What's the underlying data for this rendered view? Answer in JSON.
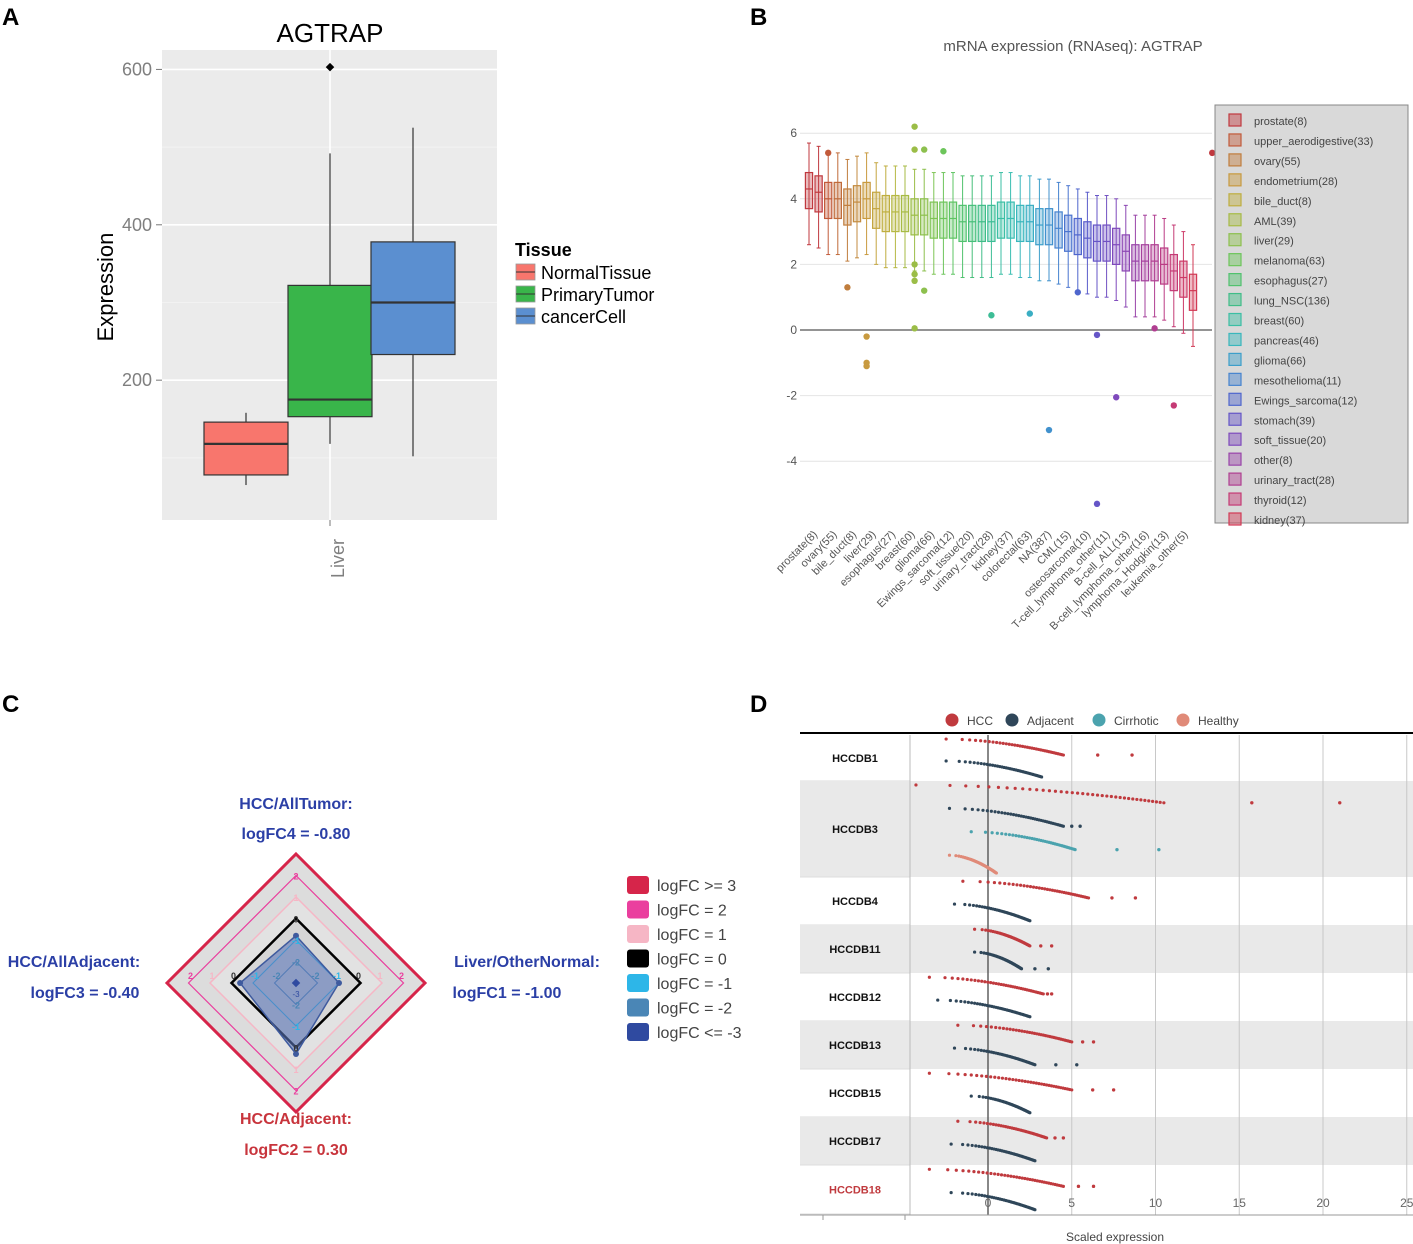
{
  "panel_labels": [
    "A",
    "B",
    "C",
    "D"
  ],
  "chart_data": [
    {
      "panel": "A",
      "type": "box",
      "title": "AGTRAP",
      "xlabel": "",
      "ylabel": "Expression",
      "categories": [
        "Liver"
      ],
      "ylim": [
        20,
        625
      ],
      "yticks": [
        "200",
        "400",
        "600"
      ],
      "ytick_values": [
        200,
        400,
        600
      ],
      "legend_title": "Tissue",
      "series": [
        {
          "name": "NormalTissue",
          "color": "#f8766d",
          "whisker_low": 65,
          "q1": 78,
          "median": 118,
          "q3": 146,
          "whisker_high": 158,
          "outliers": []
        },
        {
          "name": "PrimaryTumor",
          "color": "#39b54a",
          "whisker_low": 118,
          "q1": 153,
          "median": 175,
          "q3": 322,
          "whisker_high": 492,
          "outliers": [
            603
          ]
        },
        {
          "name": "cancerCell",
          "color": "#5b8fd0",
          "whisker_low": 102,
          "q1": 233,
          "median": 300,
          "q3": 378,
          "whisker_high": 525,
          "outliers": []
        }
      ]
    },
    {
      "panel": "B",
      "type": "box",
      "title": "mRNA expression (RNAseq): AGTRAP",
      "ylim": [
        -5.5,
        6.5
      ],
      "yticks": [
        "6",
        "4",
        "2",
        "0",
        "-2",
        "-4"
      ],
      "ytick_values": [
        6,
        4,
        2,
        0,
        -2,
        -4
      ],
      "x_tick_labels": [
        "prostate(8)",
        "ovary(55)",
        "bile_duct(8)",
        "liver(29)",
        "esophagus(27)",
        "breast(60)",
        "glioma(66)",
        "Ewings_sarcoma(12)",
        "soft_tissue(20)",
        "urinary_tract(28)",
        "kidney(37)",
        "colorectal(63)",
        "NA(387)",
        "CML(15)",
        "osteosarcoma(10)",
        "T-cell_lymphoma_other(11)",
        "B-cell_ALL(13)",
        "B-cell_lymphoma_other(16)",
        "lymphoma_Hodgkin(13)",
        "leukemia_other(5)"
      ],
      "legend": [
        "prostate(8)",
        "upper_aerodigestive(33)",
        "ovary(55)",
        "endometrium(28)",
        "bile_duct(8)",
        "AML(39)",
        "liver(29)",
        "melanoma(63)",
        "esophagus(27)",
        "lung_NSC(136)",
        "breast(60)",
        "pancreas(46)",
        "glioma(66)",
        "mesothelioma(11)",
        "Ewings_sarcoma(12)",
        "stomach(39)",
        "soft_tissue(20)",
        "other(8)",
        "urinary_tract(28)",
        "thyroid(12)",
        "kidney(37)"
      ],
      "medians": [
        4.3,
        4.2,
        4.0,
        4.0,
        3.8,
        3.9,
        4.0,
        3.7,
        3.6,
        3.6,
        3.6,
        3.5,
        3.5,
        3.4,
        3.4,
        3.4,
        3.3,
        3.3,
        3.3,
        3.3,
        3.4,
        3.4,
        3.3,
        3.3,
        3.2,
        3.2,
        3.1,
        3.0,
        2.9,
        2.8,
        2.7,
        2.7,
        2.6,
        2.4,
        2.1,
        2.1,
        2.1,
        2.0,
        1.8,
        1.6,
        1.2
      ],
      "outliers": [
        [
          2,
          5.4
        ],
        [
          4,
          1.3
        ],
        [
          6,
          -0.2
        ],
        [
          6,
          -1.0
        ],
        [
          6,
          -1.1
        ],
        [
          11,
          6.2
        ],
        [
          11,
          5.5
        ],
        [
          11,
          2.0
        ],
        [
          11,
          1.7
        ],
        [
          11,
          1.5
        ],
        [
          11,
          0.05
        ],
        [
          12,
          5.5
        ],
        [
          12,
          1.2
        ],
        [
          14,
          5.45
        ],
        [
          19,
          0.45
        ],
        [
          23,
          0.5
        ],
        [
          25,
          -3.05
        ],
        [
          28,
          1.15
        ],
        [
          30,
          -0.15
        ],
        [
          30,
          -5.3
        ],
        [
          32,
          -2.05
        ],
        [
          36,
          0.05
        ],
        [
          38,
          -2.3
        ],
        [
          42,
          5.4
        ],
        [
          43,
          -1.5
        ],
        [
          48,
          -2.75
        ]
      ]
    },
    {
      "panel": "C",
      "type": "radar",
      "axes": [
        {
          "title": "HCC/AllTumor:",
          "value_text": "logFC4 = -0.80",
          "logFC": -0.8,
          "color": "#2b3fa6"
        },
        {
          "title": "Liver/OtherNormal:",
          "value_text": "logFC1 = -1.00",
          "logFC": -1.0,
          "color": "#2b3fa6"
        },
        {
          "title": "HCC/Adjacent:",
          "value_text": "logFC2 = 0.30",
          "logFC": 0.3,
          "color": "#c8343c"
        },
        {
          "title": "HCC/AllAdjacent:",
          "value_text": "logFC3 = -0.40",
          "logFC": -0.4,
          "color": "#2b3fa6"
        }
      ],
      "ring_labels": [
        "2",
        "1",
        "0",
        "-1",
        "-2"
      ],
      "center_label": "-3",
      "legend": [
        {
          "label": "logFC >= 3",
          "color": "#d6254a"
        },
        {
          "label": "logFC = 2",
          "color": "#ea3f9e"
        },
        {
          "label": "logFC = 1",
          "color": "#f6b6c5"
        },
        {
          "label": "logFC = 0",
          "color": "#000000"
        },
        {
          "label": "logFC = -1",
          "color": "#2db6e8"
        },
        {
          "label": "logFC = -2",
          "color": "#4a86b6"
        },
        {
          "label": "logFC <= -3",
          "color": "#2f4aa0"
        }
      ]
    },
    {
      "panel": "D",
      "type": "scatter",
      "xlabel": "Scaled expression",
      "xlim": [
        -10,
        25
      ],
      "xticks": [
        "0",
        "5",
        "10",
        "15",
        "20",
        "25"
      ],
      "xtick_values": [
        0,
        5,
        10,
        15,
        20,
        25
      ],
      "legend": [
        {
          "label": "HCC",
          "color": "#c03a3e"
        },
        {
          "label": "Adjacent",
          "color": "#2f4659"
        },
        {
          "label": "Cirrhotic",
          "color": "#4ba3ae"
        },
        {
          "label": "Healthy",
          "color": "#e08a78"
        }
      ],
      "datasets": [
        {
          "name": "HCCDB1",
          "highlight": false,
          "groups": {
            "HCC": [
              -2.5,
              4.5,
              8.6
            ],
            "Adjacent": [
              -2.5,
              3.2,
              3.2
            ]
          }
        },
        {
          "name": "HCCDB3",
          "highlight": false,
          "groups": {
            "HCC": [
              -4.3,
              10.5,
              21.0
            ],
            "Adjacent": [
              -2.3,
              4.5,
              5.5
            ],
            "Cirrhotic": [
              -1.0,
              5.2,
              10.2
            ],
            "Healthy": [
              -2.3,
              0.5,
              0.5
            ]
          }
        },
        {
          "name": "HCCDB4",
          "highlight": false,
          "groups": {
            "HCC": [
              -1.5,
              6.0,
              8.8
            ],
            "Adjacent": [
              -2.0,
              2.5,
              2.5
            ]
          }
        },
        {
          "name": "HCCDB11",
          "highlight": false,
          "groups": {
            "HCC": [
              -0.8,
              2.5,
              3.8
            ],
            "Adjacent": [
              -0.8,
              2.0,
              3.6
            ]
          }
        },
        {
          "name": "HCCDB12",
          "highlight": false,
          "groups": {
            "HCC": [
              -3.5,
              3.3,
              3.8
            ],
            "Adjacent": [
              -3.0,
              2.5,
              2.5
            ]
          }
        },
        {
          "name": "HCCDB13",
          "highlight": false,
          "groups": {
            "HCC": [
              -1.8,
              5.0,
              6.3
            ],
            "Adjacent": [
              -2.0,
              2.8,
              5.3
            ]
          }
        },
        {
          "name": "HCCDB15",
          "highlight": false,
          "groups": {
            "HCC": [
              -3.5,
              5.0,
              7.5
            ],
            "Adjacent": [
              -1.0,
              2.5,
              2.5
            ]
          }
        },
        {
          "name": "HCCDB17",
          "highlight": false,
          "groups": {
            "HCC": [
              -1.8,
              3.5,
              4.5
            ],
            "Adjacent": [
              -2.2,
              2.8,
              2.8
            ]
          }
        },
        {
          "name": "HCCDB18",
          "highlight": true,
          "groups": {
            "HCC": [
              -3.5,
              4.5,
              6.3
            ],
            "Adjacent": [
              -2.2,
              2.8,
              2.8
            ]
          }
        }
      ]
    }
  ]
}
